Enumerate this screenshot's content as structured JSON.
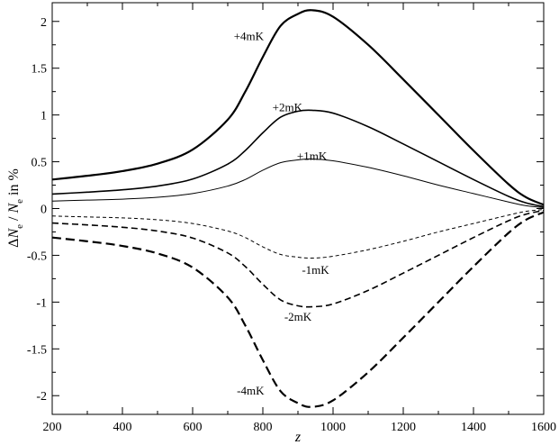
{
  "chart_data": {
    "type": "line",
    "title": "",
    "xlabel": "z",
    "ylabel": {
      "delta": "Δ",
      "n1": "N",
      "sub1": "e",
      "slash": " / ",
      "n2": "N",
      "sub2": "e",
      "suffix": " in %"
    },
    "xlim": [
      200,
      1600
    ],
    "ylim": [
      -2.2,
      2.2
    ],
    "xticks": [
      200,
      400,
      600,
      800,
      1000,
      1200,
      1400,
      1600
    ],
    "xtick_labels": [
      "200",
      "400",
      "600",
      "800",
      "1000",
      "1200",
      "1400",
      "1600"
    ],
    "yticks": [
      -2,
      -1.5,
      -1,
      -0.5,
      0,
      0.5,
      1,
      1.5,
      2
    ],
    "ytick_labels": [
      "-2",
      "-1.5",
      "-1",
      "-0.5",
      "0",
      "0.5",
      "1",
      "1.5",
      "2"
    ],
    "x_minor_step": 100,
    "y_minor_step": 0.25,
    "grid": false,
    "x": [
      200,
      300,
      400,
      500,
      600,
      700,
      750,
      800,
      850,
      900,
      940,
      1000,
      1100,
      1200,
      1300,
      1400,
      1500,
      1550,
      1600
    ],
    "series": [
      {
        "label": "+4mK",
        "label_pos": [
          760,
          1.84
        ],
        "style": "solid-thick",
        "values": [
          0.31,
          0.35,
          0.4,
          0.48,
          0.63,
          0.95,
          1.25,
          1.62,
          1.95,
          2.08,
          2.12,
          2.05,
          1.75,
          1.38,
          1.0,
          0.62,
          0.26,
          0.12,
          0.04
        ]
      },
      {
        "label": "+2mK",
        "label_pos": [
          870,
          1.08
        ],
        "style": "solid-medium",
        "values": [
          0.155,
          0.175,
          0.2,
          0.24,
          0.315,
          0.475,
          0.62,
          0.81,
          0.975,
          1.04,
          1.05,
          1.02,
          0.875,
          0.69,
          0.5,
          0.31,
          0.13,
          0.06,
          0.02
        ]
      },
      {
        "label": "+1mK",
        "label_pos": [
          940,
          0.56
        ],
        "style": "solid-thin",
        "values": [
          0.08,
          0.09,
          0.1,
          0.12,
          0.16,
          0.24,
          0.31,
          0.41,
          0.49,
          0.52,
          0.53,
          0.51,
          0.44,
          0.35,
          0.25,
          0.16,
          0.07,
          0.03,
          0.01
        ]
      },
      {
        "label": "-1mK",
        "label_pos": [
          950,
          -0.66
        ],
        "style": "dashed-thin",
        "values": [
          -0.08,
          -0.09,
          -0.1,
          -0.12,
          -0.16,
          -0.24,
          -0.31,
          -0.41,
          -0.49,
          -0.52,
          -0.53,
          -0.51,
          -0.44,
          -0.35,
          -0.25,
          -0.16,
          -0.07,
          -0.03,
          -0.01
        ]
      },
      {
        "label": "-2mK",
        "label_pos": [
          900,
          -1.16
        ],
        "style": "dashed-medium",
        "values": [
          -0.155,
          -0.175,
          -0.2,
          -0.24,
          -0.315,
          -0.475,
          -0.62,
          -0.81,
          -0.975,
          -1.04,
          -1.05,
          -1.02,
          -0.875,
          -0.69,
          -0.5,
          -0.31,
          -0.13,
          -0.06,
          -0.02
        ]
      },
      {
        "label": "-4mK",
        "label_pos": [
          765,
          -1.95
        ],
        "style": "dashed-thick",
        "values": [
          -0.31,
          -0.35,
          -0.4,
          -0.48,
          -0.63,
          -0.95,
          -1.25,
          -1.62,
          -1.95,
          -2.08,
          -2.12,
          -2.05,
          -1.75,
          -1.38,
          -1.0,
          -0.62,
          -0.26,
          -0.12,
          -0.04
        ]
      }
    ]
  }
}
